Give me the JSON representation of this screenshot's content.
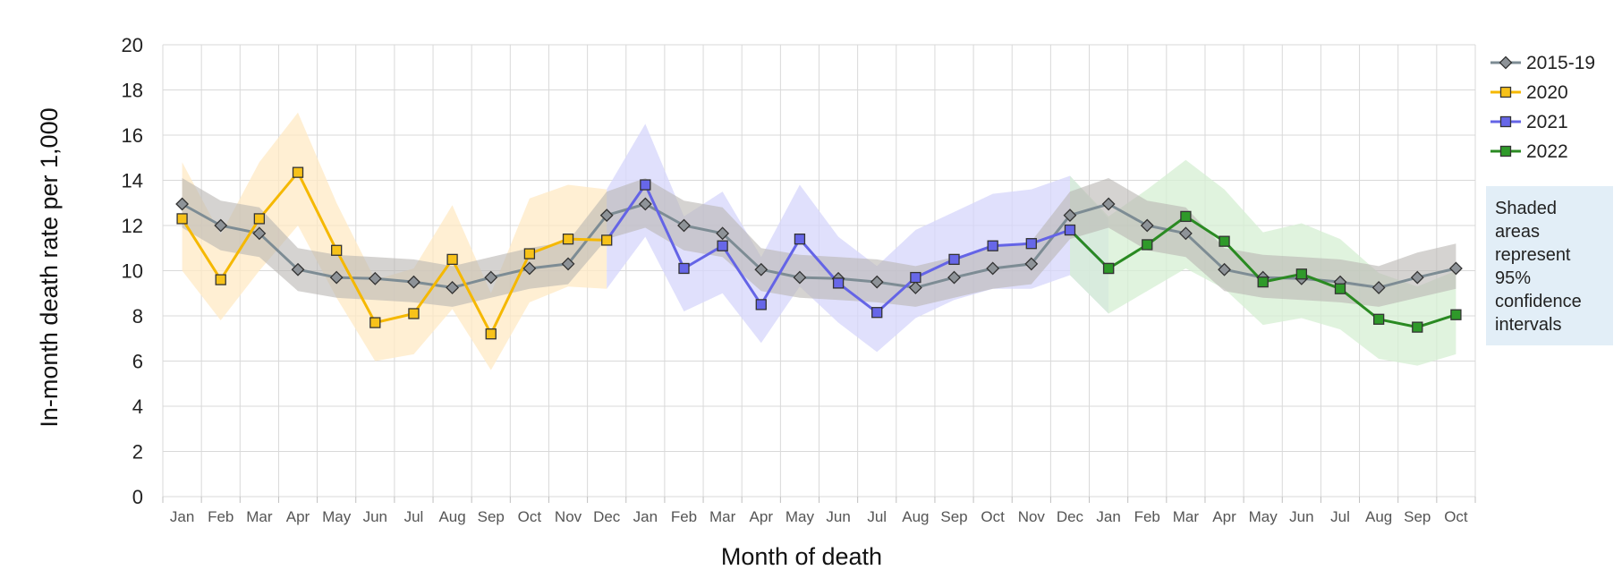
{
  "chart_data": {
    "type": "line",
    "ylabel": "In-month death rate per 1,000",
    "xlabel": "Month of death",
    "ylim": [
      0,
      20
    ],
    "y_ticks": [
      0,
      2,
      4,
      6,
      8,
      10,
      12,
      14,
      16,
      18,
      20
    ],
    "x_tick_labels": [
      "Jan",
      "Feb",
      "Mar",
      "Apr",
      "May",
      "Jun",
      "Jul",
      "Aug",
      "Sep",
      "Oct",
      "Nov",
      "Dec",
      "Jan",
      "Feb",
      "Mar",
      "Apr",
      "May",
      "Jun",
      "Jul",
      "Aug",
      "Sep",
      "Oct",
      "Nov",
      "Dec",
      "Jan",
      "Feb",
      "Mar",
      "Apr",
      "May",
      "Jun",
      "Jul",
      "Aug",
      "Sep",
      "Oct"
    ],
    "grid": true,
    "legend_position": "right",
    "note_lines": [
      "Shaded",
      "areas",
      "represent",
      "95%",
      "confidence",
      "intervals"
    ],
    "series": [
      {
        "name": "2015-19",
        "color": "#7d8c94",
        "marker": "diamond",
        "marker_fill": "#8e9398",
        "band_color": "#b9b6b3",
        "x_start": 0,
        "values": [
          12.95,
          12.0,
          11.65,
          10.05,
          9.7,
          9.65,
          9.5,
          9.25,
          9.7,
          10.1,
          10.3,
          12.45,
          12.95,
          12.0,
          11.65,
          10.05,
          9.7,
          9.65,
          9.5,
          9.25,
          9.7,
          10.1,
          10.3,
          12.45,
          12.95,
          12.0,
          11.65,
          10.05,
          9.7,
          9.65,
          9.5,
          9.25,
          9.7,
          10.1
        ],
        "lower": [
          11.9,
          10.9,
          10.6,
          9.1,
          8.8,
          8.7,
          8.6,
          8.4,
          8.8,
          9.2,
          9.4,
          11.4,
          11.9,
          10.9,
          10.6,
          9.1,
          8.8,
          8.7,
          8.6,
          8.4,
          8.8,
          9.2,
          9.4,
          11.4,
          11.9,
          10.9,
          10.6,
          9.1,
          8.8,
          8.7,
          8.6,
          8.4,
          8.8,
          9.2
        ],
        "upper": [
          14.1,
          13.1,
          12.8,
          11.0,
          10.7,
          10.6,
          10.5,
          10.2,
          10.6,
          11.0,
          11.3,
          13.5,
          14.1,
          13.1,
          12.8,
          11.0,
          10.7,
          10.6,
          10.5,
          10.2,
          10.6,
          11.0,
          11.3,
          13.5,
          14.1,
          13.1,
          12.8,
          11.0,
          10.7,
          10.6,
          10.5,
          10.2,
          10.8,
          11.2
        ]
      },
      {
        "name": "2020",
        "color": "#f5b800",
        "marker": "square",
        "marker_fill": "#f7c21a",
        "band_color": "#ffe9c4",
        "x_start": 0,
        "values": [
          12.3,
          9.6,
          12.3,
          14.35,
          10.9,
          7.7,
          8.1,
          10.5,
          7.2,
          10.75,
          11.4,
          11.35
        ],
        "lower": [
          10.0,
          7.8,
          10.0,
          12.0,
          8.8,
          6.0,
          6.3,
          8.3,
          5.6,
          8.6,
          9.3,
          9.2
        ],
        "upper": [
          14.8,
          11.6,
          14.8,
          17.0,
          13.0,
          9.6,
          10.1,
          12.9,
          9.0,
          13.2,
          13.8,
          13.6
        ]
      },
      {
        "name": "2021",
        "color": "#6464e6",
        "marker": "square",
        "marker_fill": "#6767e8",
        "band_color": "#d6d6fb",
        "x_start": 11,
        "values": [
          11.35,
          13.8,
          10.1,
          11.1,
          8.5,
          11.4,
          9.45,
          8.15,
          9.7,
          10.5,
          11.1,
          11.2,
          11.8,
          10.1
        ],
        "lower": [
          9.2,
          11.5,
          8.2,
          9.0,
          6.8,
          9.3,
          7.7,
          6.4,
          7.9,
          8.7,
          9.2,
          9.2,
          9.8,
          8.1
        ],
        "upper": [
          13.6,
          16.5,
          12.4,
          13.5,
          10.6,
          13.8,
          11.5,
          10.2,
          11.8,
          12.6,
          13.4,
          13.6,
          14.2,
          12.3
        ]
      },
      {
        "name": "2022",
        "color": "#2a8a22",
        "marker": "square",
        "marker_fill": "#2f9a2a",
        "band_color": "#d5efd3",
        "x_start": 23,
        "values": [
          11.8,
          10.1,
          11.15,
          12.4,
          11.3,
          9.5,
          9.85,
          9.2,
          7.85,
          7.5,
          8.05
        ],
        "lower": [
          9.8,
          8.1,
          9.1,
          10.1,
          9.2,
          7.6,
          7.9,
          7.4,
          6.1,
          5.8,
          6.3
        ],
        "upper": [
          14.2,
          12.4,
          13.6,
          14.9,
          13.6,
          11.7,
          12.1,
          11.4,
          9.9,
          9.3,
          10.0
        ]
      }
    ]
  }
}
